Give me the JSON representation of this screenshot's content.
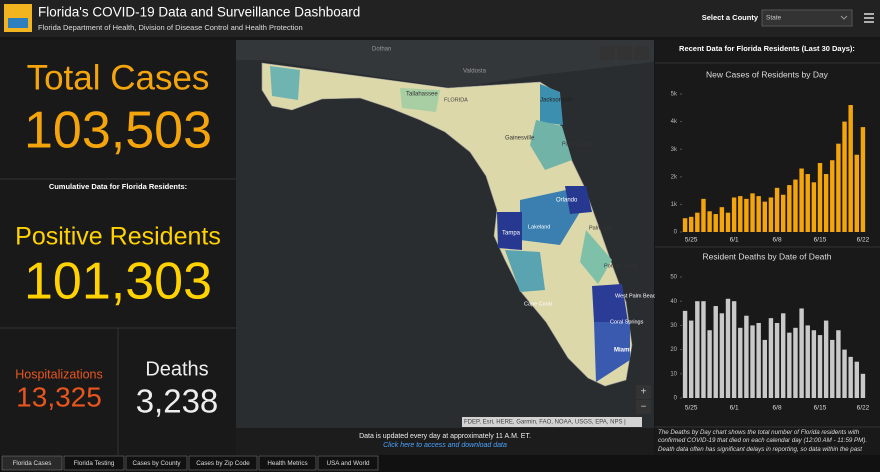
{
  "header": {
    "title": "Florida's COVID-19 Data and Surveillance Dashboard",
    "subtitle": "Florida Department of Health, Division of Disease Control and Health Protection",
    "select_label": "Select a County",
    "select_value": "State"
  },
  "stats": {
    "total_cases_label": "Total Cases",
    "total_cases": "103,503",
    "cumulative_label": "Cumulative Data for Florida Residents:",
    "positive_label": "Positive Residents",
    "positive": "101,303",
    "hospitalizations_label": "Hospitalizations",
    "hospitalizations": "13,325",
    "deaths_label": "Deaths",
    "deaths": "3,238"
  },
  "map": {
    "labels": [
      "Dothan",
      "Valdosta",
      "Tallahassee",
      "FLORIDA",
      "Jacksonville",
      "Gainesville",
      "Palm Coast",
      "Orlando",
      "Tampa",
      "Lakeland",
      "Palm Bay",
      "Port St. Lucie",
      "West Palm Beach",
      "Cape Coral",
      "Coral Springs",
      "Miami"
    ],
    "attribution": "FDEP, Esri, HERE, Garmin, FAO, NOAA, USGS, EPA, NPS |",
    "update_note": "Data is updated every day at approximately 11 A.M. ET.",
    "download_link": "Click here to access and download data"
  },
  "panel": {
    "heading": "Recent Data for Florida Residents (Last 30 Days):",
    "note": "The Deaths by Day chart shows the total number of Florida residents with confirmed COVID-19 that died on each calendar day (12:00 AM - 11:59 PM). Death data often has significant delays in reporting, so data within the past"
  },
  "tabs": [
    "Florida Cases",
    "Florida Testing",
    "Cases by County",
    "Cases by Zip Code",
    "Health Metrics",
    "USA and World"
  ],
  "chart_data": [
    {
      "type": "bar",
      "title": "New Cases of Residents by Day",
      "color": "#f5a50c",
      "categories": [
        null,
        "5/25",
        null,
        null,
        null,
        null,
        null,
        null,
        "6/1",
        null,
        null,
        null,
        null,
        null,
        null,
        "6/8",
        null,
        null,
        null,
        null,
        null,
        null,
        "6/15",
        null,
        null,
        null,
        null,
        null,
        null,
        "6/22"
      ],
      "values": [
        500,
        550,
        700,
        1200,
        750,
        650,
        900,
        700,
        1250,
        1300,
        1200,
        1400,
        1300,
        1100,
        1250,
        1600,
        1350,
        1700,
        1900,
        2300,
        2100,
        1800,
        2500,
        2100,
        2600,
        3200,
        4000,
        4600,
        2800,
        3800
      ],
      "ylim": [
        0,
        5000
      ],
      "yticks": [
        0,
        {
          "value": 1000,
          "label": "1k"
        },
        {
          "value": 2000,
          "label": "2k"
        },
        {
          "value": 3000,
          "label": "3k"
        },
        {
          "value": 4000,
          "label": "4k"
        },
        {
          "value": 5000,
          "label": "5k"
        }
      ]
    },
    {
      "type": "bar",
      "title": "Resident Deaths by Date of Death",
      "color": "#c9c9c9",
      "categories": [
        null,
        "5/25",
        null,
        null,
        null,
        null,
        null,
        null,
        "6/1",
        null,
        null,
        null,
        null,
        null,
        null,
        "6/8",
        null,
        null,
        null,
        null,
        null,
        null,
        "6/15",
        null,
        null,
        null,
        null,
        null,
        null,
        "6/22"
      ],
      "values": [
        36,
        32,
        40,
        40,
        28,
        38,
        35,
        41,
        40,
        29,
        34,
        30,
        31,
        24,
        33,
        31,
        35,
        27,
        29,
        37,
        30,
        28,
        26,
        32,
        24,
        28,
        20,
        17,
        15,
        10
      ],
      "ylim": [
        0,
        50
      ],
      "yticks": [
        0,
        10,
        20,
        30,
        40,
        50
      ]
    }
  ]
}
